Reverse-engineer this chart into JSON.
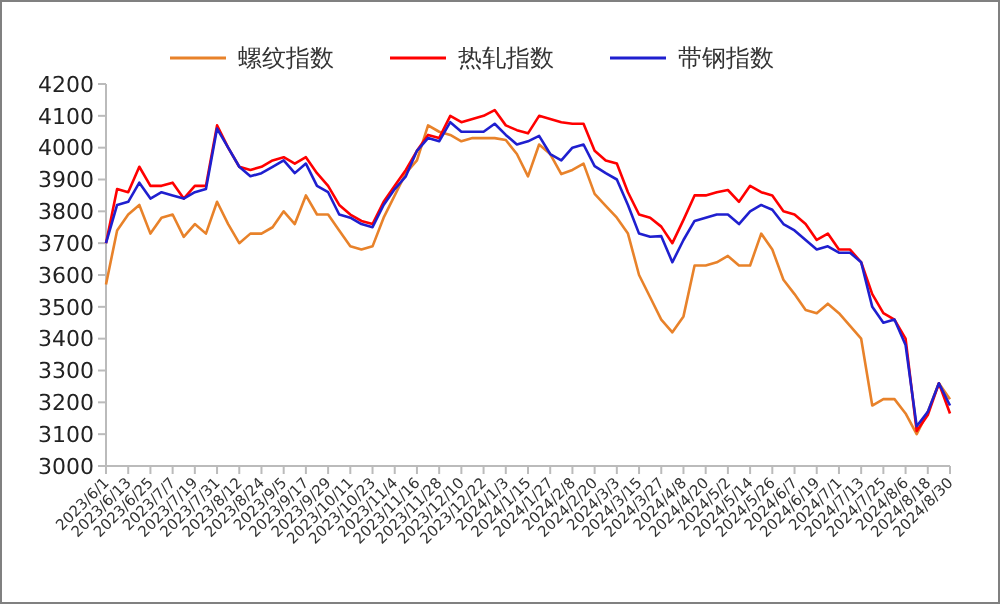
{
  "chart_data": {
    "type": "line",
    "legend": "top",
    "grid": false,
    "x": [
      "2023-06-01",
      "2023-06-07",
      "2023-06-13",
      "2023-06-19",
      "2023-06-25",
      "2023-07-01",
      "2023-07-07",
      "2023-07-13",
      "2023-07-19",
      "2023-07-25",
      "2023-07-31",
      "2023-08-06",
      "2023-08-12",
      "2023-08-18",
      "2023-08-24",
      "2023-08-30",
      "2023-09-05",
      "2023-09-11",
      "2023-09-17",
      "2023-09-23",
      "2023-09-29",
      "2023-10-05",
      "2023-10-11",
      "2023-10-17",
      "2023-10-23",
      "2023-10-29",
      "2023-11-04",
      "2023-11-10",
      "2023-11-16",
      "2023-11-22",
      "2023-11-28",
      "2023-12-04",
      "2023-12-10",
      "2023-12-16",
      "2023-12-22",
      "2023-12-28",
      "2024-01-03",
      "2024-01-09",
      "2024-01-15",
      "2024-01-21",
      "2024-01-27",
      "2024-02-02",
      "2024-02-08",
      "2024-02-14",
      "2024-02-20",
      "2024-02-26",
      "2024-03-03",
      "2024-03-09",
      "2024-03-15",
      "2024-03-21",
      "2024-03-27",
      "2024-04-02",
      "2024-04-08",
      "2024-04-14",
      "2024-04-20",
      "2024-04-26",
      "2024-05-02",
      "2024-05-08",
      "2024-05-14",
      "2024-05-20",
      "2024-05-26",
      "2024-06-01",
      "2024-06-07",
      "2024-06-13",
      "2024-06-19",
      "2024-06-25",
      "2024-07-01",
      "2024-07-07",
      "2024-07-13",
      "2024-07-19",
      "2024-07-25",
      "2024-07-31",
      "2024-08-06",
      "2024-08-12",
      "2024-08-18",
      "2024-08-24",
      "2024-08-30"
    ],
    "series": [
      {
        "name": "螺纹指数",
        "color": "#e8822a",
        "values": [
          3570,
          3740,
          3790,
          3820,
          3730,
          3780,
          3790,
          3720,
          3760,
          3730,
          3830,
          3760,
          3700,
          3730,
          3730,
          3750,
          3800,
          3760,
          3850,
          3790,
          3790,
          3740,
          3690,
          3680,
          3690,
          3780,
          3850,
          3920,
          3960,
          4070,
          4050,
          4040,
          4020,
          4030,
          4030,
          4030,
          4024,
          3980,
          3910,
          4010,
          3980,
          3917,
          3930,
          3950,
          3855,
          3817,
          3780,
          3730,
          3600,
          3530,
          3460,
          3420,
          3470,
          3630,
          3630,
          3640,
          3660,
          3630,
          3630,
          3730,
          3680,
          3585,
          3540,
          3490,
          3480,
          3510,
          3480,
          3440,
          3400,
          3190,
          3210,
          3210,
          3165,
          3100,
          3170,
          3260,
          3210
        ]
      },
      {
        "name": "热轧指数",
        "color": "#ff0000",
        "values": [
          3700,
          3870,
          3860,
          3940,
          3880,
          3880,
          3890,
          3840,
          3880,
          3880,
          4070,
          4000,
          3940,
          3930,
          3940,
          3960,
          3970,
          3950,
          3970,
          3920,
          3880,
          3820,
          3790,
          3770,
          3760,
          3830,
          3880,
          3930,
          3990,
          4040,
          4030,
          4100,
          4080,
          4090,
          4100,
          4118,
          4070,
          4055,
          4045,
          4100,
          4090,
          4080,
          4075,
          4075,
          3990,
          3960,
          3950,
          3860,
          3790,
          3780,
          3752,
          3700,
          3773,
          3850,
          3850,
          3860,
          3867,
          3830,
          3880,
          3860,
          3850,
          3800,
          3790,
          3760,
          3710,
          3730,
          3680,
          3680,
          3640,
          3540,
          3480,
          3460,
          3400,
          3110,
          3160,
          3260,
          3165
        ]
      },
      {
        "name": "带钢指数",
        "color": "#1f1fcf",
        "values": [
          3700,
          3820,
          3830,
          3890,
          3840,
          3860,
          3850,
          3840,
          3860,
          3870,
          4060,
          4000,
          3940,
          3910,
          3920,
          3940,
          3960,
          3920,
          3950,
          3880,
          3860,
          3790,
          3780,
          3760,
          3750,
          3820,
          3870,
          3910,
          3990,
          4030,
          4020,
          4080,
          4050,
          4050,
          4050,
          4075,
          4040,
          4010,
          4020,
          4037,
          3980,
          3960,
          4000,
          4010,
          3942,
          3920,
          3900,
          3820,
          3730,
          3720,
          3722,
          3640,
          3710,
          3770,
          3780,
          3790,
          3790,
          3760,
          3800,
          3820,
          3805,
          3760,
          3740,
          3710,
          3680,
          3690,
          3670,
          3670,
          3640,
          3500,
          3450,
          3460,
          3380,
          3125,
          3170,
          3260,
          3190
        ]
      }
    ],
    "ylim": [
      3000,
      4200
    ],
    "yticks": [
      3000,
      3100,
      3200,
      3300,
      3400,
      3500,
      3600,
      3700,
      3800,
      3900,
      4000,
      4100,
      4200
    ],
    "xlim": [
      "2023-06-01",
      "2024-08-30"
    ],
    "xticks": [
      {
        "value": "2023-06-01",
        "label": "2023/6/1"
      },
      {
        "value": "2023-06-13",
        "label": "2023/6/13"
      },
      {
        "value": "2023-06-25",
        "label": "2023/6/25"
      },
      {
        "value": "2023-07-07",
        "label": "2023/7/7"
      },
      {
        "value": "2023-07-19",
        "label": "2023/7/19"
      },
      {
        "value": "2023-07-31",
        "label": "2023/7/31"
      },
      {
        "value": "2023-08-12",
        "label": "2023/8/12"
      },
      {
        "value": "2023-08-24",
        "label": "2023/8/24"
      },
      {
        "value": "2023-09-05",
        "label": "2023/9/5"
      },
      {
        "value": "2023-09-17",
        "label": "2023/9/17"
      },
      {
        "value": "2023-09-29",
        "label": "2023/9/29"
      },
      {
        "value": "2023-10-11",
        "label": "2023/10/11"
      },
      {
        "value": "2023-10-23",
        "label": "2023/10/23"
      },
      {
        "value": "2023-11-04",
        "label": "2023/11/4"
      },
      {
        "value": "2023-11-16",
        "label": "2023/11/16"
      },
      {
        "value": "2023-11-28",
        "label": "2023/11/28"
      },
      {
        "value": "2023-12-10",
        "label": "2023/12/10"
      },
      {
        "value": "2023-12-22",
        "label": "2023/12/22"
      },
      {
        "value": "2024-01-03",
        "label": "2024/1/3"
      },
      {
        "value": "2024-01-15",
        "label": "2024/1/15"
      },
      {
        "value": "2024-01-27",
        "label": "2024/1/27"
      },
      {
        "value": "2024-02-08",
        "label": "2024/2/8"
      },
      {
        "value": "2024-02-20",
        "label": "2024/2/20"
      },
      {
        "value": "2024-03-03",
        "label": "2024/3/3"
      },
      {
        "value": "2024-03-15",
        "label": "2024/3/15"
      },
      {
        "value": "2024-03-27",
        "label": "2024/3/27"
      },
      {
        "value": "2024-04-08",
        "label": "2024/4/8"
      },
      {
        "value": "2024-04-20",
        "label": "2024/4/20"
      },
      {
        "value": "2024-05-02",
        "label": "2024/5/2"
      },
      {
        "value": "2024-05-14",
        "label": "2024/5/14"
      },
      {
        "value": "2024-05-26",
        "label": "2024/5/26"
      },
      {
        "value": "2024-06-07",
        "label": "2024/6/7"
      },
      {
        "value": "2024-06-19",
        "label": "2024/6/19"
      },
      {
        "value": "2024-07-01",
        "label": "2024/7/1"
      },
      {
        "value": "2024-07-13",
        "label": "2024/7/13"
      },
      {
        "value": "2024-07-25",
        "label": "2024/7/25"
      },
      {
        "value": "2024-08-06",
        "label": "2024/8/6"
      },
      {
        "value": "2024-08-18",
        "label": "2024/8/18"
      },
      {
        "value": "2024-08-30",
        "label": "2024/8/30"
      }
    ]
  }
}
